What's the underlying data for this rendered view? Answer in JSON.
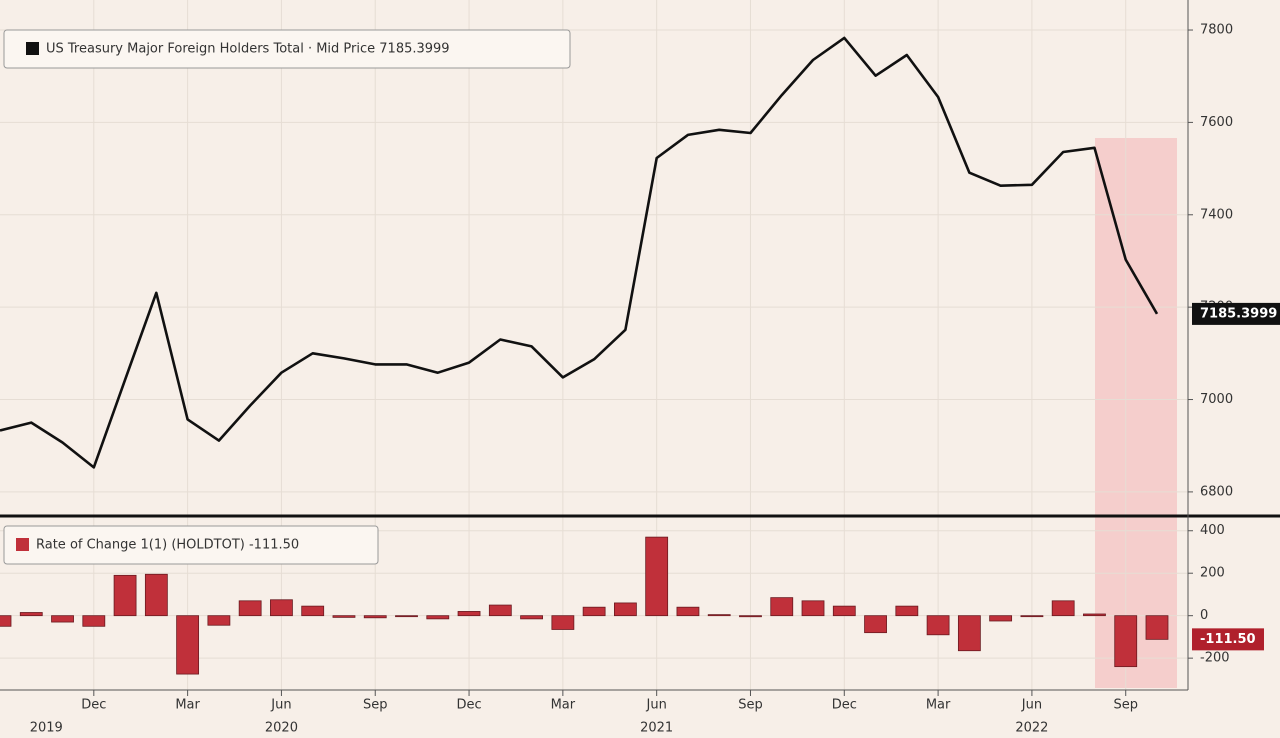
{
  "chart_data": [
    {
      "type": "line",
      "legend": "US Treasury Major Foreign Holders Total · Mid Price 7185.3999",
      "color": "#111111",
      "values": [
        6933,
        6950,
        6907,
        6853,
        7043,
        7231,
        6957,
        6911,
        6987,
        7058,
        7100,
        7089,
        7076,
        7076,
        7058,
        7080,
        7130,
        7115,
        7048,
        7087,
        7151,
        7523,
        7573,
        7584,
        7577,
        7659,
        7735,
        7783,
        7701,
        7746,
        7655,
        7491,
        7463,
        7465,
        7536,
        7545,
        7303,
        7185.3999
      ],
      "ylim": [
        6750,
        7865
      ],
      "yticks": [
        6800,
        7000,
        7200,
        7400,
        7600,
        7800
      ],
      "grid": true
    },
    {
      "type": "bar",
      "legend": "Rate of Change 1(1) (HOLDTOT) -111.50",
      "color": "#c0303a",
      "categories": [
        null,
        null,
        null,
        "Dec",
        null,
        null,
        "Mar",
        null,
        null,
        "Jun",
        null,
        null,
        "Sep",
        null,
        null,
        "Dec",
        null,
        null,
        "Mar",
        null,
        null,
        "Jun",
        null,
        null,
        "Sep",
        null,
        null,
        "Dec",
        null,
        null,
        "Mar",
        null,
        null,
        "Jun",
        null,
        null,
        "Sep",
        null
      ],
      "year_categories": [
        null,
        "2019",
        null,
        null,
        null,
        null,
        null,
        null,
        null,
        "2020",
        null,
        null,
        null,
        null,
        null,
        null,
        null,
        null,
        null,
        null,
        null,
        "2021",
        null,
        null,
        null,
        null,
        null,
        null,
        null,
        null,
        null,
        null,
        null,
        "2022",
        null,
        null,
        null,
        null
      ],
      "values": [
        -50,
        15,
        -30,
        -50,
        190,
        195,
        -275,
        -45,
        70,
        75,
        45,
        -8,
        -10,
        0,
        -15,
        20,
        50,
        -15,
        -65,
        40,
        60,
        370,
        40,
        5,
        -5,
        85,
        70,
        45,
        -80,
        45,
        -90,
        -165,
        -25,
        0,
        70,
        8,
        -240,
        -111.5
      ],
      "value_labels": [
        null,
        null,
        null,
        null,
        null,
        null,
        null,
        null,
        null,
        null,
        null,
        null,
        null,
        null,
        null,
        null,
        null,
        null,
        null,
        null,
        null,
        null,
        null,
        null,
        null,
        null,
        null,
        null,
        null,
        null,
        null,
        null,
        null,
        null,
        null,
        null,
        null,
        "-111.50"
      ],
      "ylim": [
        -350,
        460
      ],
      "yticks": [
        -200,
        0,
        200,
        400
      ],
      "grid": true
    }
  ]
}
